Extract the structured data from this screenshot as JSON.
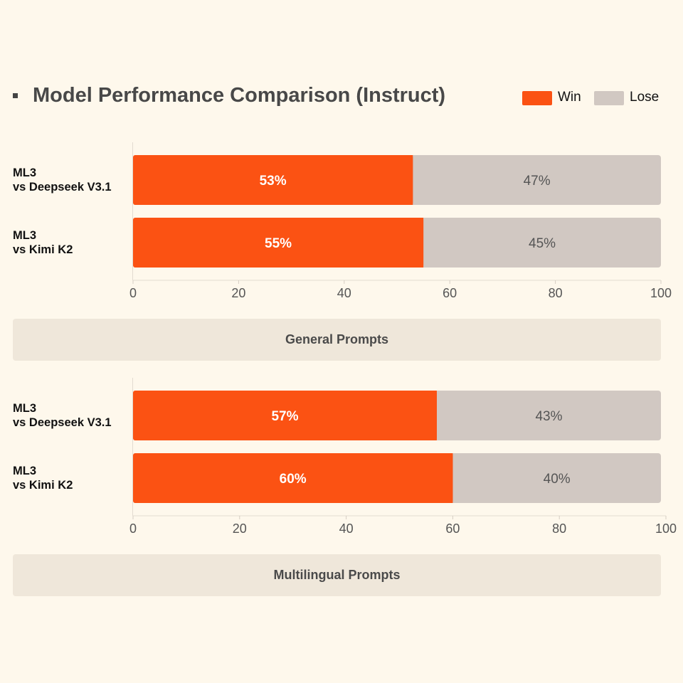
{
  "title": "Model Performance Comparison (Instruct)",
  "legend": [
    {
      "label": "Win",
      "color": "#fb5213"
    },
    {
      "label": "Lose",
      "color": "#d1c8c2"
    }
  ],
  "colors": {
    "win": "#fb5213",
    "lose": "#d1c8c2",
    "background": "#fef8ec",
    "section_band": "#efe7da"
  },
  "chart_data": [
    {
      "type": "bar",
      "orientation": "horizontal",
      "stacked": true,
      "section_label": "General Prompts",
      "categories": [
        [
          "ML3",
          "vs Deepseek V3.1"
        ],
        [
          "ML3",
          "vs Kimi K2"
        ]
      ],
      "series": [
        {
          "name": "Win",
          "values": [
            53,
            55
          ],
          "labels": [
            "53%",
            "55%"
          ]
        },
        {
          "name": "Lose",
          "values": [
            47,
            45
          ],
          "labels": [
            "47%",
            "45%"
          ]
        }
      ],
      "xlim": [
        0,
        100
      ],
      "xticks": [
        "0",
        "20",
        "40",
        "60",
        "80",
        "100"
      ]
    },
    {
      "type": "bar",
      "orientation": "horizontal",
      "stacked": true,
      "section_label": "Multilingual Prompts",
      "categories": [
        [
          "ML3",
          "vs Deepseek V3.1"
        ],
        [
          "ML3",
          "vs Kimi K2"
        ]
      ],
      "series": [
        {
          "name": "Win",
          "values": [
            57,
            60
          ],
          "labels": [
            "57%",
            "60%"
          ]
        },
        {
          "name": "Lose",
          "values": [
            43,
            40
          ],
          "labels": [
            "43%",
            "40%"
          ]
        }
      ],
      "xlim": [
        0,
        100
      ],
      "xticks": [
        "0",
        "20",
        "40",
        "60",
        "80",
        "100"
      ]
    }
  ]
}
